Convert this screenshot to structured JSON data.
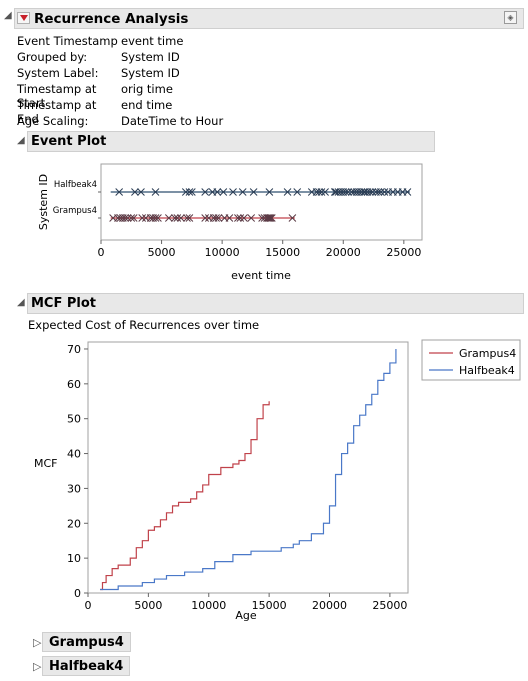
{
  "report": {
    "title": "Recurrence Analysis"
  },
  "info": [
    {
      "key": "Event Timestamp",
      "value": "event time"
    },
    {
      "key": "Grouped by:",
      "value": "System ID"
    },
    {
      "key": "System Label:",
      "value": "System ID"
    },
    {
      "key": "Timestamp at Start",
      "value": "orig time"
    },
    {
      "key": "Timestamp at End",
      "value": "end time"
    },
    {
      "key": "Age Scaling:",
      "value": "DateTime to Hour"
    }
  ],
  "event_plot": {
    "title": "Event Plot"
  },
  "mcf_plot": {
    "title": "MCF Plot",
    "caption": "Expected Cost of Recurrences over time"
  },
  "reports": [
    "Grampus4",
    "Halfbeak4"
  ],
  "colors": {
    "grampus": "#c0424a",
    "halfbeak": "#4a78c8",
    "halfbeak_events": "#2c3e55",
    "header": "#e8e8e8"
  },
  "chart_data": [
    {
      "type": "scatter",
      "xlabel": "event time",
      "ylabel": "System ID",
      "xlim": [
        0,
        26500
      ],
      "xticks": [
        0,
        5000,
        10000,
        15000,
        20000,
        25000
      ],
      "categories": [
        "Halfbeak4",
        "Grampus4"
      ],
      "series": [
        {
          "name": "Halfbeak4",
          "range": [
            800,
            25500
          ],
          "events": [
            1500,
            2800,
            3300,
            4500,
            7000,
            7300,
            7500,
            8600,
            9200,
            9600,
            10100,
            10900,
            11700,
            12600,
            13900,
            15400,
            16200,
            17400,
            17800,
            18000,
            18200,
            18500,
            19300,
            19400,
            19600,
            19800,
            20000,
            20200,
            20400,
            20700,
            20900,
            21100,
            21300,
            21500,
            21700,
            21800,
            22000,
            22200,
            22400,
            22700,
            22900,
            23100,
            23400,
            23700,
            24100,
            24500,
            24900,
            25300
          ]
        },
        {
          "name": "Grampus4",
          "range": [
            800,
            16000
          ],
          "events": [
            1000,
            1400,
            1600,
            1800,
            2000,
            2200,
            2500,
            2700,
            3400,
            3700,
            4100,
            4300,
            4500,
            4700,
            5600,
            6100,
            6300,
            6600,
            7100,
            7300,
            8600,
            8900,
            9300,
            9500,
            9700,
            10200,
            10600,
            11300,
            11500,
            11800,
            12400,
            13300,
            13500,
            13700,
            13800,
            13900,
            14000,
            14100,
            15800
          ]
        }
      ]
    },
    {
      "type": "line",
      "xlabel": "Age",
      "ylabel": "MCF",
      "xlim": [
        0,
        26500
      ],
      "ylim": [
        0,
        72
      ],
      "xticks": [
        0,
        5000,
        10000,
        15000,
        20000,
        25000
      ],
      "yticks": [
        0,
        10,
        20,
        30,
        40,
        50,
        60,
        70
      ],
      "legend": "top-right",
      "series": [
        {
          "name": "Grampus4",
          "x": [
            1000,
            1200,
            1500,
            2000,
            2500,
            3500,
            4000,
            4500,
            5000,
            5500,
            6000,
            6500,
            7000,
            7500,
            8500,
            9000,
            9500,
            10000,
            11000,
            12000,
            12500,
            13000,
            13500,
            14000,
            14500,
            15000
          ],
          "y": [
            1,
            3,
            5,
            7,
            8,
            10,
            13,
            15,
            18,
            19,
            21,
            23,
            25,
            26,
            27,
            29,
            31,
            34,
            36,
            37,
            38,
            40,
            44,
            50,
            54,
            55
          ]
        },
        {
          "name": "Halfbeak4",
          "x": [
            1000,
            2500,
            4500,
            5500,
            6500,
            8000,
            9500,
            10500,
            12000,
            13500,
            15000,
            16000,
            17000,
            17500,
            18500,
            19500,
            20000,
            20500,
            21000,
            21500,
            22000,
            22500,
            23000,
            23500,
            24000,
            24500,
            25000,
            25500
          ],
          "y": [
            1,
            2,
            3,
            4,
            5,
            6,
            7,
            9,
            11,
            12,
            12,
            13,
            14,
            15,
            17,
            20,
            25,
            34,
            40,
            43,
            48,
            51,
            54,
            57,
            61,
            63,
            66,
            70
          ]
        }
      ]
    }
  ]
}
